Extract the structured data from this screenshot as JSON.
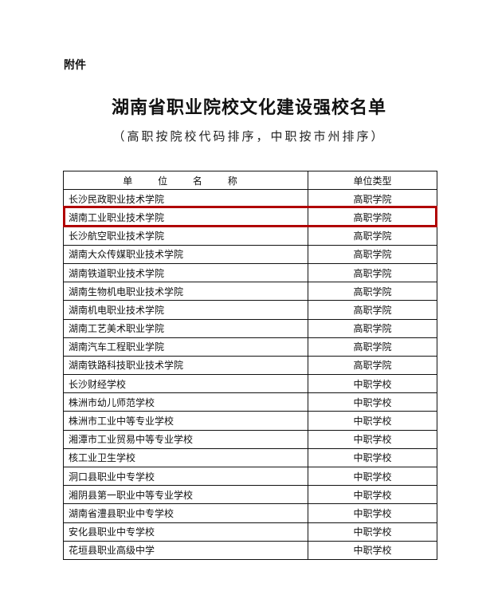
{
  "attachment_label": "附件",
  "title": "湖南省职业院校文化建设强校名单",
  "subtitle": "（高职按院校代码排序，中职按市州排序）",
  "highlight_color": "#b00000",
  "highlighted_row": 1,
  "table": {
    "headers": [
      "单 位 名 称",
      "单位类型"
    ],
    "rows": [
      {
        "name": "长沙民政职业技术学院",
        "type": "高职学院"
      },
      {
        "name": "湖南工业职业技术学院",
        "type": "高职学院"
      },
      {
        "name": "长沙航空职业技术学院",
        "type": "高职学院"
      },
      {
        "name": "湖南大众传媒职业技术学院",
        "type": "高职学院"
      },
      {
        "name": "湖南铁道职业技术学院",
        "type": "高职学院"
      },
      {
        "name": "湖南生物机电职业技术学院",
        "type": "高职学院"
      },
      {
        "name": "湖南机电职业技术学院",
        "type": "高职学院"
      },
      {
        "name": "湖南工艺美术职业学院",
        "type": "高职学院"
      },
      {
        "name": "湖南汽车工程职业学院",
        "type": "高职学院"
      },
      {
        "name": "湖南铁路科技职业技术学院",
        "type": "高职学院"
      },
      {
        "name": "长沙财经学校",
        "type": "中职学校"
      },
      {
        "name": "株洲市幼儿师范学校",
        "type": "中职学校"
      },
      {
        "name": "株洲市工业中等专业学校",
        "type": "中职学校"
      },
      {
        "name": "湘潭市工业贸易中等专业学校",
        "type": "中职学校"
      },
      {
        "name": "核工业卫生学校",
        "type": "中职学校"
      },
      {
        "name": "洞口县职业中专学校",
        "type": "中职学校"
      },
      {
        "name": "湘阴县第一职业中等专业学校",
        "type": "中职学校"
      },
      {
        "name": "湖南省澧县职业中专学校",
        "type": "中职学校"
      },
      {
        "name": "安化县职业中专学校",
        "type": "中职学校"
      },
      {
        "name": "花垣县职业高级中学",
        "type": "中职学校"
      }
    ]
  }
}
